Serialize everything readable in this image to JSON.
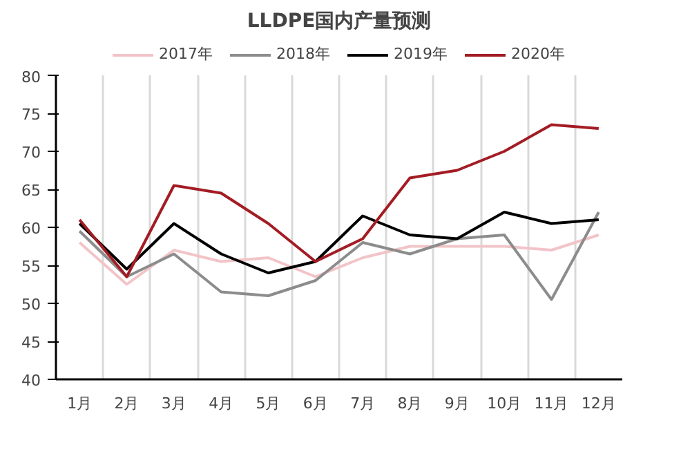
{
  "chart_data": {
    "type": "line",
    "title": "LLDPE国内产量预测",
    "categories": [
      "1月",
      "2月",
      "3月",
      "4月",
      "5月",
      "6月",
      "7月",
      "8月",
      "9月",
      "10月",
      "11月",
      "12月"
    ],
    "series": [
      {
        "name": "2017年",
        "color": "#f2c4c8",
        "values": [
          58,
          52.5,
          57,
          55.5,
          56,
          53.5,
          56,
          57.5,
          57.5,
          57.5,
          57,
          59
        ]
      },
      {
        "name": "2018年",
        "color": "#8c8c8c",
        "values": [
          59.5,
          53.5,
          56.5,
          51.5,
          51,
          53,
          58,
          56.5,
          58.5,
          59,
          50.5,
          62
        ]
      },
      {
        "name": "2019年",
        "color": "#000000",
        "values": [
          60.5,
          54.5,
          60.5,
          56.5,
          54,
          55.5,
          61.5,
          59,
          58.5,
          62,
          60.5,
          61
        ]
      },
      {
        "name": "2020年",
        "color": "#a31c24",
        "values": [
          61,
          53.5,
          65.5,
          64.5,
          60.5,
          55.5,
          58.5,
          66.5,
          67.5,
          70,
          73.5,
          73
        ]
      }
    ],
    "ylim": [
      40,
      80
    ],
    "yticks": [
      40,
      45,
      50,
      55,
      60,
      65,
      70,
      75,
      80
    ],
    "grid": "x",
    "legend": "top",
    "marker": "none",
    "line_style": "solid"
  }
}
